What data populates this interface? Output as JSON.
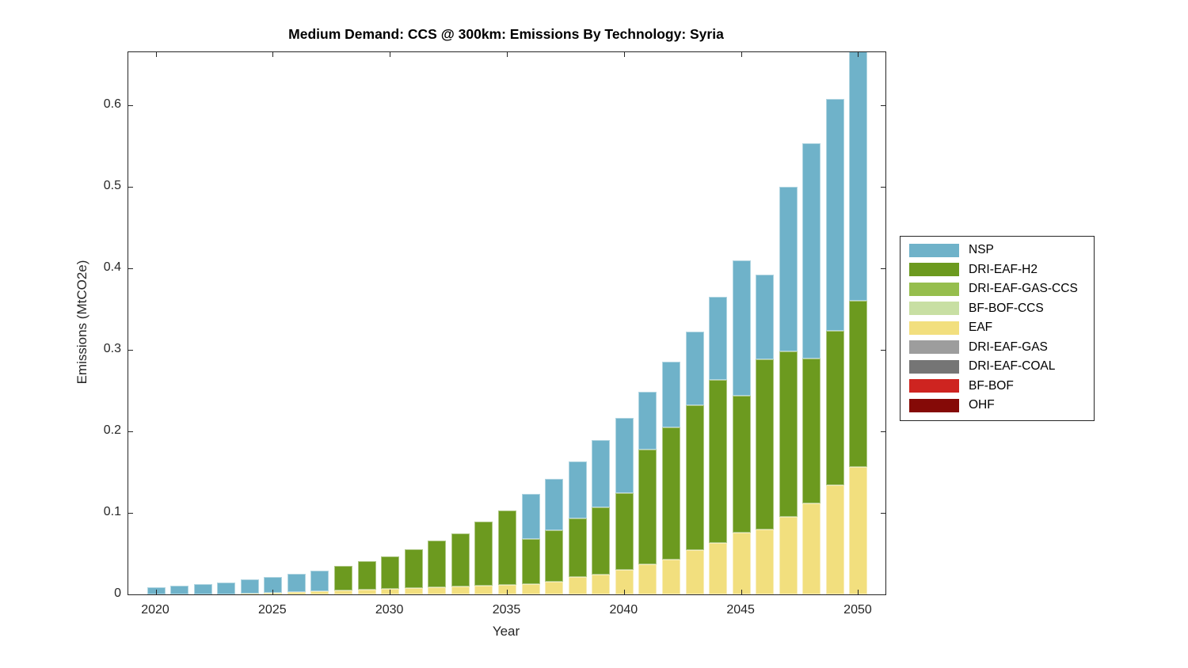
{
  "figure": {
    "title": "Medium Demand: CCS @ 300km: Emissions By Technology: Syria",
    "background_color": "#ffffff",
    "frame_color": "#262626"
  },
  "axes": {
    "xlabel": "Year",
    "ylabel": "Emissions (MtCO2e)",
    "x_tick_labels": [
      "2020",
      "2025",
      "2030",
      "2035",
      "2040",
      "2045",
      "2050"
    ],
    "y_tick_labels": [
      "0",
      "0.1",
      "0.2",
      "0.3",
      "0.4",
      "0.5",
      "0.6"
    ],
    "grid": false,
    "tick_direction": "in"
  },
  "legend": {
    "position": "right-outside",
    "border_color": "#262626"
  },
  "chart_data": {
    "type": "bar",
    "stacked": true,
    "title": "Medium Demand: CCS @ 300km: Emissions By Technology: Syria",
    "xlabel": "Year",
    "ylabel": "Emissions (MtCO2e)",
    "xlim": [
      2018.6,
      2051.4
    ],
    "ylim": [
      0,
      0.665
    ],
    "note": "2050 bar is clipped by the top of the axes",
    "categories": [
      2020,
      2021,
      2022,
      2023,
      2024,
      2025,
      2026,
      2027,
      2028,
      2029,
      2030,
      2031,
      2032,
      2033,
      2034,
      2035,
      2036,
      2037,
      2038,
      2039,
      2040,
      2041,
      2042,
      2043,
      2044,
      2045,
      2046,
      2047,
      2048,
      2049,
      2050
    ],
    "stack_order_bottom_to_top": [
      "OHF",
      "BF-BOF",
      "DRI-EAF-COAL",
      "DRI-EAF-GAS",
      "EAF",
      "BF-BOF-CCS",
      "DRI-EAF-GAS-CCS",
      "DRI-EAF-H2",
      "NSP"
    ],
    "series": [
      {
        "name": "NSP",
        "color": "#6FB2C9",
        "values": [
          0.009,
          0.011,
          0.013,
          0.015,
          0.017,
          0.019,
          0.022,
          0.025,
          0,
          0,
          0,
          0,
          0,
          0,
          0,
          0,
          0.055,
          0.063,
          0.07,
          0.082,
          0.093,
          0.071,
          0.08,
          0.09,
          0.102,
          0.166,
          0.104,
          0.202,
          0.264,
          0.285,
          0.315
        ]
      },
      {
        "name": "DRI-EAF-H2",
        "color": "#6C9A1F",
        "values": [
          0,
          0,
          0,
          0,
          0,
          0,
          0,
          0,
          0.03,
          0.035,
          0.04,
          0.047,
          0.057,
          0.065,
          0.078,
          0.091,
          0.055,
          0.063,
          0.072,
          0.083,
          0.094,
          0.141,
          0.162,
          0.178,
          0.2,
          0.168,
          0.208,
          0.203,
          0.177,
          0.189,
          0.204
        ]
      },
      {
        "name": "DRI-EAF-GAS-CCS",
        "color": "#96BE4D",
        "values": [
          0,
          0,
          0,
          0,
          0,
          0,
          0,
          0,
          0,
          0,
          0,
          0,
          0,
          0,
          0,
          0,
          0,
          0,
          0,
          0,
          0,
          0,
          0,
          0,
          0,
          0,
          0,
          0,
          0,
          0,
          0
        ]
      },
      {
        "name": "BF-BOF-CCS",
        "color": "#C8DFA3",
        "values": [
          0,
          0,
          0,
          0,
          0,
          0,
          0,
          0,
          0,
          0,
          0,
          0,
          0,
          0,
          0,
          0,
          0,
          0,
          0,
          0,
          0,
          0,
          0,
          0,
          0,
          0,
          0,
          0,
          0,
          0,
          0
        ]
      },
      {
        "name": "EAF",
        "color": "#F2DF7E",
        "values": [
          0,
          0,
          0,
          0,
          0.001,
          0.002,
          0.003,
          0.004,
          0.005,
          0.006,
          0.007,
          0.008,
          0.009,
          0.01,
          0.011,
          0.012,
          0.013,
          0.016,
          0.021,
          0.024,
          0.03,
          0.037,
          0.043,
          0.054,
          0.063,
          0.076,
          0.08,
          0.095,
          0.112,
          0.134,
          0.156
        ]
      },
      {
        "name": "DRI-EAF-GAS",
        "color": "#9D9D9D",
        "values": [
          0,
          0,
          0,
          0,
          0,
          0,
          0,
          0,
          0,
          0,
          0,
          0,
          0,
          0,
          0,
          0,
          0,
          0,
          0,
          0,
          0,
          0,
          0,
          0,
          0,
          0,
          0,
          0,
          0,
          0,
          0
        ]
      },
      {
        "name": "DRI-EAF-COAL",
        "color": "#757575",
        "values": [
          0,
          0,
          0,
          0,
          0,
          0,
          0,
          0,
          0,
          0,
          0,
          0,
          0,
          0,
          0,
          0,
          0,
          0,
          0,
          0,
          0,
          0,
          0,
          0,
          0,
          0,
          0,
          0,
          0,
          0,
          0
        ]
      },
      {
        "name": "BF-BOF",
        "color": "#CE2420",
        "values": [
          0,
          0,
          0,
          0,
          0,
          0,
          0,
          0,
          0,
          0,
          0,
          0,
          0,
          0,
          0,
          0,
          0,
          0,
          0,
          0,
          0,
          0,
          0,
          0,
          0,
          0,
          0,
          0,
          0,
          0,
          0
        ]
      },
      {
        "name": "OHF",
        "color": "#850A07",
        "values": [
          0,
          0,
          0,
          0,
          0,
          0,
          0,
          0,
          0,
          0,
          0,
          0,
          0,
          0,
          0,
          0,
          0,
          0,
          0,
          0,
          0,
          0,
          0,
          0,
          0,
          0,
          0,
          0,
          0,
          0,
          0
        ]
      }
    ]
  }
}
